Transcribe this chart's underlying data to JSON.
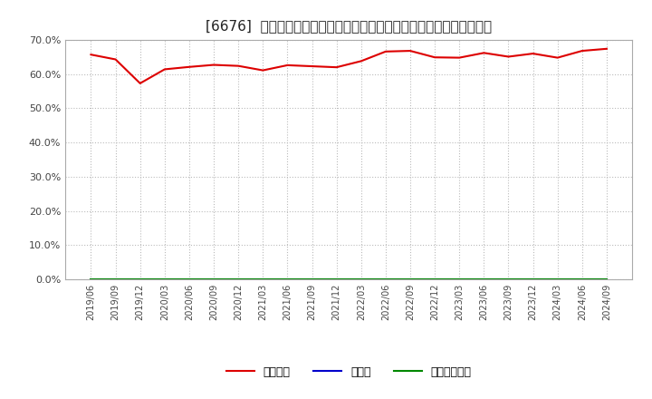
{
  "title": "[6676]  自己資本、のれん、繰延税金資産の総資産に対する比率の推移",
  "ylim": [
    0.0,
    0.7
  ],
  "yticks": [
    0.0,
    0.1,
    0.2,
    0.3,
    0.4,
    0.5,
    0.6,
    0.7
  ],
  "background_color": "#ffffff",
  "plot_bg_color": "#ffffff",
  "grid_color": "#bbbbbb",
  "dates": [
    "2019/06",
    "2019/09",
    "2019/12",
    "2020/03",
    "2020/06",
    "2020/09",
    "2020/12",
    "2021/03",
    "2021/06",
    "2021/09",
    "2021/12",
    "2022/03",
    "2022/06",
    "2022/09",
    "2022/12",
    "2023/03",
    "2023/06",
    "2023/09",
    "2023/12",
    "2024/03",
    "2024/06",
    "2024/09"
  ],
  "equity_ratio": [
    0.657,
    0.643,
    0.573,
    0.614,
    0.621,
    0.627,
    0.624,
    0.611,
    0.626,
    0.623,
    0.62,
    0.638,
    0.666,
    0.668,
    0.649,
    0.648,
    0.662,
    0.651,
    0.66,
    0.648,
    0.668,
    0.674
  ],
  "goodwill_ratio": [
    0.0,
    0.0,
    0.0,
    0.0,
    0.0,
    0.0,
    0.0,
    0.0,
    0.0,
    0.0,
    0.0,
    0.0,
    0.0,
    0.0,
    0.0,
    0.0,
    0.0,
    0.0,
    0.0,
    0.0,
    0.0,
    0.0
  ],
  "deferred_tax_ratio": [
    0.0,
    0.0,
    0.0,
    0.0,
    0.0,
    0.0,
    0.0,
    0.0,
    0.0,
    0.0,
    0.0,
    0.0,
    0.0,
    0.0,
    0.0,
    0.0,
    0.0,
    0.0,
    0.0,
    0.0,
    0.0,
    0.0
  ],
  "equity_color": "#dd0000",
  "goodwill_color": "#0000cc",
  "deferred_tax_color": "#008800",
  "legend_labels": [
    "自己資本",
    "のれん",
    "繰延税金資産"
  ],
  "line_width": 1.5,
  "title_fontsize": 11
}
